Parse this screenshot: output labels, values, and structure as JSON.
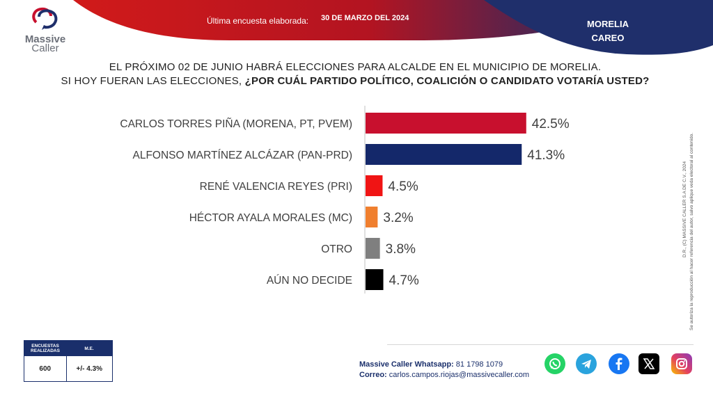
{
  "logo": {
    "line1": "Massive",
    "line2": "Caller"
  },
  "header": {
    "label": "Última encuesta elaborada:",
    "date": "30 DE MARZO DEL 2024"
  },
  "region": {
    "line1": "MORELIA",
    "line2": "CAREO"
  },
  "question": {
    "line1": "EL PRÓXIMO 02 DE JUNIO HABRÁ ELECCIONES PARA ALCALDE EN EL MUNICIPIO DE MORELIA.",
    "line2_plain": "SI HOY FUERAN LAS ELECCIONES, ",
    "line2_bold": "¿POR CUÁL PARTIDO POLÍTICO, COALICIÓN O CANDIDATO VOTARÍA USTED?"
  },
  "chart_data": {
    "type": "bar",
    "orientation": "horizontal",
    "categories": [
      "CARLOS TORRES PIÑA (MORENA, PT, PVEM)",
      "ALFONSO MARTÍNEZ ALCÁZAR (PAN-PRD)",
      "RENÉ VALENCIA REYES (PRI)",
      "HÉCTOR AYALA MORALES (MC)",
      "OTRO",
      "AÚN NO DECIDE"
    ],
    "values": [
      42.5,
      41.3,
      4.5,
      3.2,
      3.8,
      4.7
    ],
    "value_labels": [
      "42.5%",
      "41.3%",
      "4.5%",
      "3.2%",
      "3.8%",
      "4.7%"
    ],
    "colors": [
      "#c8102e",
      "#14286a",
      "#f01414",
      "#f07f2e",
      "#7f7f7f",
      "#000000"
    ],
    "xlim": [
      0,
      45
    ],
    "grid": false
  },
  "side_note": {
    "line1": "D.R., (C) MASSIVE CALLER S.A DE C.V., 2024",
    "line2": "Se autoriza la reproducción al hacer referencia del autor, salvo aplique veda electoral al contenido."
  },
  "stats": {
    "col1_header": "ENCUESTAS REALIZADAS",
    "col2_header": "M.E.",
    "col1_value": "600",
    "col2_value": "+/- 4.3%"
  },
  "contact": {
    "whatsapp_label": "Massive Caller Whatsapp:",
    "whatsapp_number": "81 1798 1079",
    "email_label": "Correo:",
    "email": "carlos.campos.riojas@massivecaller.com"
  },
  "social_icons": [
    "whatsapp-icon",
    "telegram-icon",
    "facebook-icon",
    "x-icon",
    "instagram-icon"
  ],
  "colors": {
    "red": "#c8102e",
    "navy": "#14286a"
  }
}
